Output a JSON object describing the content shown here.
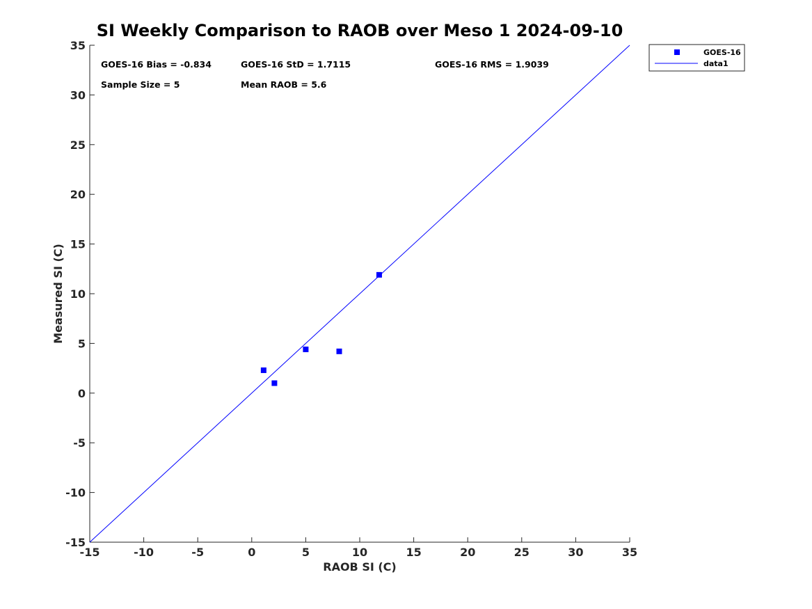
{
  "chart_data": {
    "type": "scatter",
    "title": "SI Weekly Comparison to RAOB over Meso 1 2024-09-10",
    "xlabel": "RAOB SI (C)",
    "ylabel": "Measured SI (C)",
    "xlim": [
      -15,
      35
    ],
    "ylim": [
      -15,
      35
    ],
    "xticks": [
      -15,
      -10,
      -5,
      0,
      5,
      10,
      15,
      20,
      25,
      30,
      35
    ],
    "yticks": [
      -15,
      -10,
      -5,
      0,
      5,
      10,
      15,
      20,
      25,
      30,
      35
    ],
    "xtick_labels": [
      "-15",
      "-10",
      "-5",
      "0",
      "5",
      "10",
      "15",
      "20",
      "25",
      "30",
      "35"
    ],
    "ytick_labels": [
      "-15",
      "-10",
      "-5",
      "0",
      "5",
      "10",
      "15",
      "20",
      "25",
      "30",
      "35"
    ],
    "grid": false,
    "legend_position": "outside-top-right",
    "series": [
      {
        "name": "GOES-16",
        "kind": "scatter",
        "marker": "square",
        "color": "#0000ff",
        "x": [
          1.1,
          2.1,
          5.0,
          8.1,
          11.8
        ],
        "y": [
          2.3,
          1.0,
          4.4,
          4.2,
          11.9
        ]
      },
      {
        "name": "data1",
        "kind": "line",
        "color": "#0000ff",
        "x": [
          -15,
          35
        ],
        "y": [
          -15,
          35
        ]
      }
    ],
    "annotations": [
      "GOES-16 Bias = -0.834",
      "GOES-16 StD = 1.7115",
      "GOES-16 RMS = 1.9039",
      "Sample Size = 5",
      "Mean RAOB = 5.6"
    ]
  }
}
